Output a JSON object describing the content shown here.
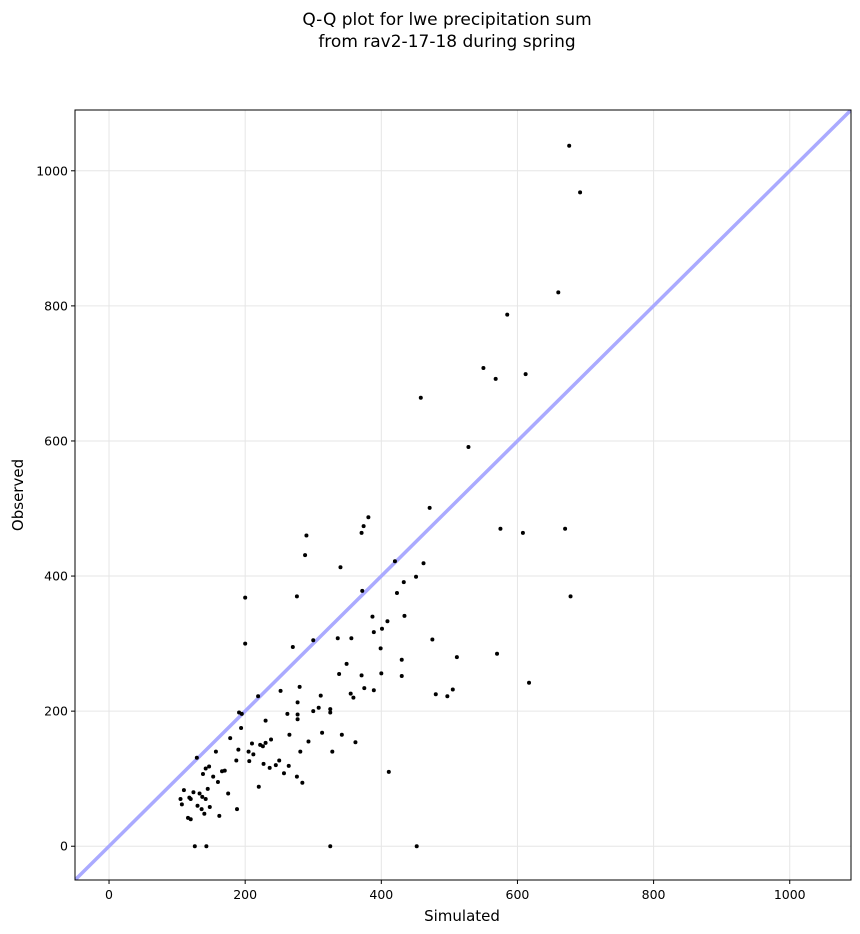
{
  "chart_data": {
    "type": "scatter",
    "title": [
      "Q-Q plot for lwe precipitation sum",
      "from rav2-17-18 during spring"
    ],
    "xlabel": "Simulated",
    "ylabel": "Observed",
    "xlim": [
      -50,
      1090
    ],
    "ylim": [
      -50,
      1090
    ],
    "xticks": [
      0,
      200,
      400,
      600,
      800,
      1000
    ],
    "yticks": [
      0,
      200,
      400,
      600,
      800,
      1000
    ],
    "grid": true,
    "reference_line": {
      "from": [
        -50,
        -50
      ],
      "to": [
        1090,
        1090
      ],
      "color": "#aaaaff"
    },
    "marker_color": "#000000",
    "points": [
      [
        676,
        1037
      ],
      [
        692,
        968
      ],
      [
        660,
        820
      ],
      [
        585,
        787
      ],
      [
        550,
        708
      ],
      [
        568,
        692
      ],
      [
        612,
        699
      ],
      [
        458,
        664
      ],
      [
        528,
        591
      ],
      [
        471,
        501
      ],
      [
        575,
        470
      ],
      [
        608,
        464
      ],
      [
        670,
        470
      ],
      [
        678,
        370
      ],
      [
        570,
        285
      ],
      [
        617,
        242
      ],
      [
        381,
        487
      ],
      [
        374,
        474
      ],
      [
        371,
        464
      ],
      [
        290,
        460
      ],
      [
        288,
        431
      ],
      [
        340,
        413
      ],
      [
        420,
        422
      ],
      [
        462,
        419
      ],
      [
        451,
        399
      ],
      [
        433,
        391
      ],
      [
        423,
        375
      ],
      [
        372,
        378
      ],
      [
        276,
        370
      ],
      [
        200,
        368
      ],
      [
        434,
        341
      ],
      [
        387,
        340
      ],
      [
        409,
        333
      ],
      [
        401,
        322
      ],
      [
        389,
        317
      ],
      [
        300,
        305
      ],
      [
        336,
        308
      ],
      [
        356,
        308
      ],
      [
        200,
        300
      ],
      [
        270,
        295
      ],
      [
        399,
        293
      ],
      [
        430,
        276
      ],
      [
        511,
        280
      ],
      [
        475,
        306
      ],
      [
        349,
        270
      ],
      [
        371,
        253
      ],
      [
        400,
        256
      ],
      [
        430,
        252
      ],
      [
        338,
        255
      ],
      [
        480,
        225
      ],
      [
        497,
        222
      ],
      [
        505,
        232
      ],
      [
        389,
        231
      ],
      [
        375,
        234
      ],
      [
        355,
        226
      ],
      [
        359,
        220
      ],
      [
        280,
        236
      ],
      [
        252,
        230
      ],
      [
        219,
        222
      ],
      [
        311,
        223
      ],
      [
        308,
        205
      ],
      [
        300,
        200
      ],
      [
        325,
        203
      ],
      [
        325,
        198
      ],
      [
        313,
        168
      ],
      [
        342,
        165
      ],
      [
        362,
        154
      ],
      [
        277,
        213
      ],
      [
        277,
        195
      ],
      [
        277,
        188
      ],
      [
        262,
        196
      ],
      [
        230,
        186
      ],
      [
        191,
        198
      ],
      [
        195,
        196
      ],
      [
        194,
        175
      ],
      [
        178,
        160
      ],
      [
        210,
        152
      ],
      [
        230,
        153
      ],
      [
        238,
        158
      ],
      [
        265,
        165
      ],
      [
        293,
        155
      ],
      [
        281,
        140
      ],
      [
        328,
        140
      ],
      [
        411,
        110
      ],
      [
        222,
        150
      ],
      [
        226,
        148
      ],
      [
        205,
        140
      ],
      [
        212,
        136
      ],
      [
        190,
        143
      ],
      [
        157,
        140
      ],
      [
        129,
        131
      ],
      [
        250,
        127
      ],
      [
        245,
        120
      ],
      [
        227,
        122
      ],
      [
        264,
        119
      ],
      [
        236,
        116
      ],
      [
        170,
        112
      ],
      [
        166,
        111
      ],
      [
        206,
        126
      ],
      [
        187,
        127
      ],
      [
        147,
        118
      ],
      [
        142,
        115
      ],
      [
        138,
        107
      ],
      [
        153,
        103
      ],
      [
        160,
        95
      ],
      [
        145,
        85
      ],
      [
        162,
        45
      ],
      [
        175,
        78
      ],
      [
        188,
        55
      ],
      [
        220,
        88
      ],
      [
        257,
        108
      ],
      [
        276,
        103
      ],
      [
        284,
        94
      ],
      [
        110,
        83
      ],
      [
        120,
        70
      ],
      [
        124,
        80
      ],
      [
        133,
        78
      ],
      [
        137,
        73
      ],
      [
        142,
        70
      ],
      [
        148,
        58
      ],
      [
        136,
        55
      ],
      [
        140,
        48
      ],
      [
        130,
        60
      ],
      [
        118,
        72
      ],
      [
        105,
        70
      ],
      [
        107,
        62
      ],
      [
        116,
        42
      ],
      [
        120,
        40
      ],
      [
        126,
        0
      ],
      [
        143,
        0
      ],
      [
        325,
        0
      ],
      [
        452,
        0
      ]
    ]
  }
}
